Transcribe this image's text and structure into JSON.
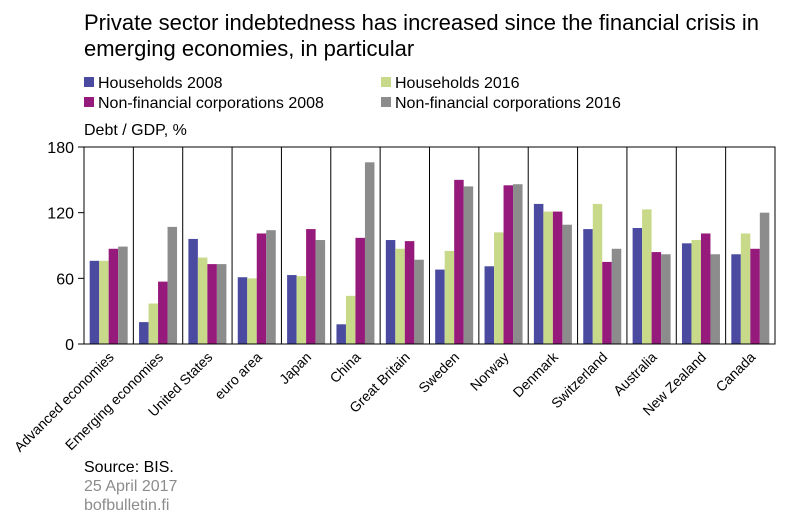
{
  "title": "Private sector indebtedness has increased since the financial crisis in emerging economies, in particular",
  "unit_label": "Debt / GDP, %",
  "source": "Source: BIS.",
  "date": "25 April 2017",
  "site": "bofbulletin.fi",
  "chart_data": {
    "type": "bar",
    "categories": [
      "Advanced economies",
      "Emerging economies",
      "United States",
      "euro area",
      "Japan",
      "China",
      "Great Britain",
      "Sweden",
      "Norway",
      "Denmark",
      "Switzerland",
      "Australia",
      "New Zealand",
      "Canada"
    ],
    "series": [
      {
        "name": "Households 2008",
        "color": "#4a4ba0",
        "values": [
          76,
          20,
          96,
          61,
          63,
          18,
          95,
          68,
          71,
          128,
          105,
          106,
          92,
          82
        ]
      },
      {
        "name": "Households 2016",
        "color": "#c9d98a",
        "values": [
          76,
          37,
          79,
          60,
          62,
          44,
          87,
          85,
          102,
          121,
          128,
          123,
          95,
          101
        ]
      },
      {
        "name": "Non-financial corporations 2008",
        "color": "#961a7c",
        "values": [
          87,
          57,
          73,
          101,
          105,
          97,
          94,
          150,
          145,
          121,
          75,
          84,
          101,
          87
        ]
      },
      {
        "name": "Non-financial corporations 2016",
        "color": "#8c8c8c",
        "values": [
          89,
          107,
          73,
          104,
          95,
          166,
          77,
          144,
          146,
          109,
          87,
          82,
          82,
          120
        ]
      }
    ],
    "yticks": [
      0,
      60,
      120,
      180
    ],
    "ylim": [
      0,
      180
    ],
    "xlabel": "",
    "ylabel": "Debt / GDP, %",
    "grid": false,
    "legend_position": "top"
  }
}
